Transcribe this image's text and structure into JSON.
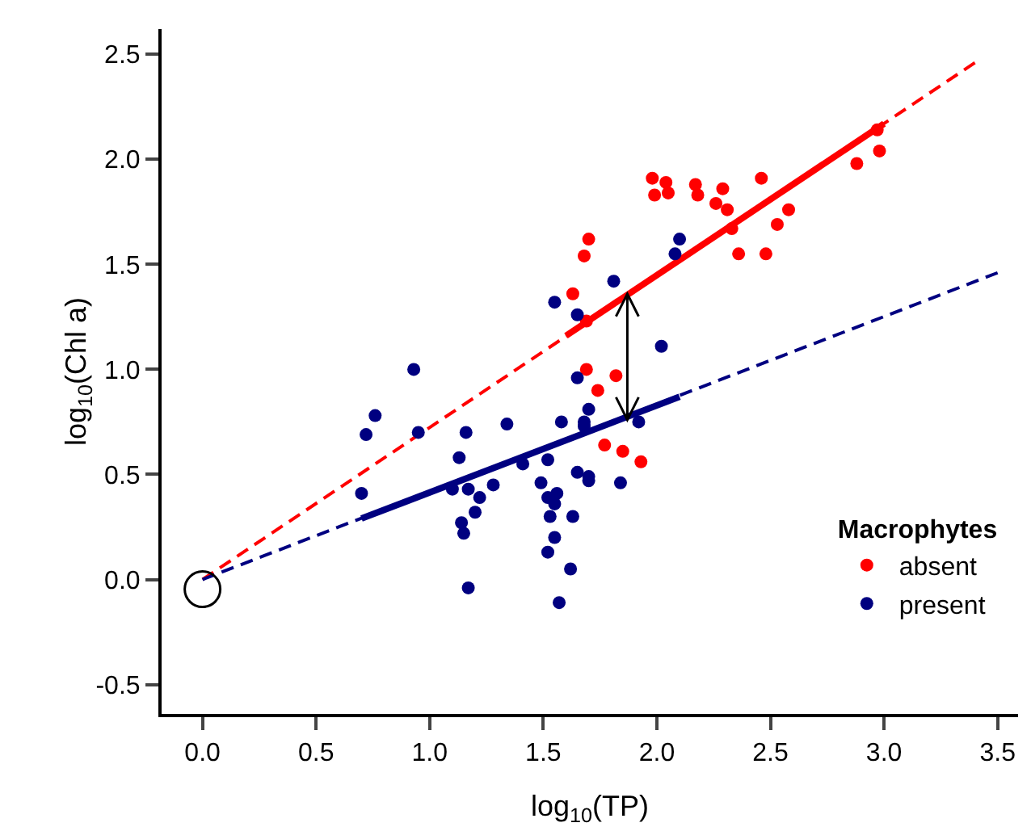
{
  "chart_data": {
    "type": "scatter",
    "xlabel": "log$_{10}$(TP)",
    "ylabel": "log$_{10}$(Chl a)",
    "legend_title": "Macrophytes",
    "legend": "bottom right",
    "grid": false,
    "marker": "circle",
    "xlim": [
      -0.18,
      3.59
    ],
    "xticks": [
      {
        "value": 0,
        "label": "0.0"
      },
      0.5,
      {
        "value": 1,
        "label": "1.0"
      },
      1.5,
      {
        "value": 2,
        "label": "2.0"
      },
      2.5,
      {
        "value": 3,
        "label": "3.0"
      },
      3.5
    ],
    "ylim": [
      -0.64,
      2.62
    ],
    "yticks": [
      -0.5,
      {
        "value": 0,
        "label": "0.0"
      },
      0.5,
      {
        "value": 1,
        "label": "1.0"
      },
      1.5,
      {
        "value": 2,
        "label": "2.0"
      },
      2.5
    ],
    "series": [
      {
        "type": "line",
        "color": "#ff0000",
        "line_style": "dashed",
        "marker": "none",
        "x": [
          0,
          3.4
        ],
        "values": [
          0,
          2.46
        ]
      },
      {
        "type": "line",
        "color": "#000080",
        "line_style": "dashed",
        "marker": "none",
        "x": [
          0,
          3.5
        ],
        "values": [
          0,
          1.46
        ]
      },
      {
        "type": "line",
        "color": "#ff0000",
        "line_style": "solid",
        "marker": "none",
        "x": [
          1.6,
          3.0
        ],
        "values": [
          1.16,
          2.17
        ]
      },
      {
        "type": "line",
        "color": "#000080",
        "line_style": "solid",
        "marker": "none",
        "x": [
          0.7,
          2.1
        ],
        "values": [
          0.29,
          0.87
        ]
      },
      {
        "name": "absent",
        "color": "#ff0000",
        "x": [
          1.98,
          2.04,
          1.99,
          2.05,
          2.17,
          2.18,
          2.29,
          2.26,
          2.31,
          2.46,
          2.58,
          2.53,
          2.33,
          2.36,
          2.48,
          2.88,
          2.97,
          2.98,
          1.7,
          1.68,
          1.63,
          1.69,
          1.69,
          1.82,
          1.74,
          1.77,
          1.85,
          1.93
        ],
        "values": [
          1.91,
          1.89,
          1.83,
          1.84,
          1.88,
          1.83,
          1.86,
          1.79,
          1.76,
          1.91,
          1.76,
          1.69,
          1.67,
          1.55,
          1.55,
          1.98,
          2.14,
          2.04,
          1.62,
          1.54,
          1.36,
          1.23,
          1.0,
          0.97,
          0.9,
          0.64,
          0.61,
          0.56
        ]
      },
      {
        "name": "present",
        "color": "#000080",
        "x": [
          1.81,
          1.55,
          1.65,
          2.02,
          0.93,
          1.65,
          0.76,
          0.72,
          0.95,
          1.16,
          1.34,
          1.58,
          1.7,
          1.68,
          1.68,
          1.92,
          1.13,
          1.41,
          1.52,
          0.7,
          1.1,
          1.17,
          1.28,
          1.22,
          1.49,
          1.65,
          1.7,
          1.7,
          1.84,
          1.52,
          1.56,
          1.55,
          1.2,
          1.53,
          1.63,
          1.14,
          1.15,
          1.55,
          1.52,
          1.62,
          1.17,
          1.57,
          2.1,
          2.08
        ],
        "values": [
          1.42,
          1.32,
          1.26,
          1.11,
          1.0,
          0.96,
          0.78,
          0.69,
          0.7,
          0.7,
          0.74,
          0.75,
          0.81,
          0.75,
          0.73,
          0.75,
          0.58,
          0.55,
          0.57,
          0.41,
          0.43,
          0.43,
          0.45,
          0.39,
          0.46,
          0.51,
          0.49,
          0.47,
          0.46,
          0.39,
          0.41,
          0.36,
          0.32,
          0.3,
          0.3,
          0.27,
          0.22,
          0.2,
          0.13,
          0.05,
          -0.04,
          -0.11,
          1.62,
          1.55
        ]
      }
    ]
  }
}
